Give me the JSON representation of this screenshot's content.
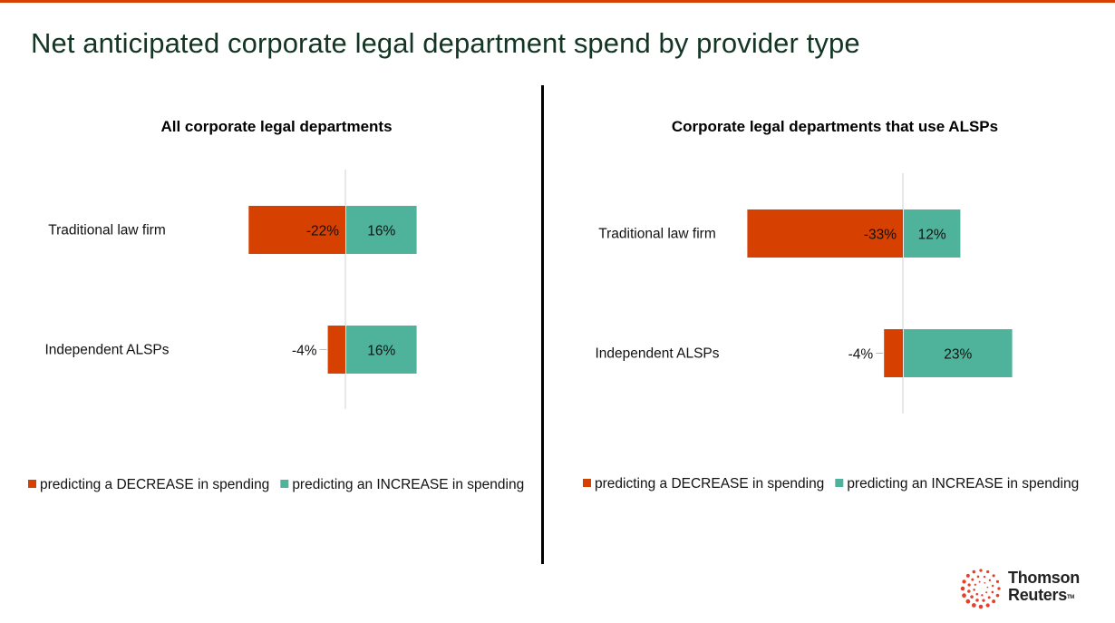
{
  "page": {
    "title": "Net anticipated corporate legal department spend by provider type",
    "accent_color": "#d64000"
  },
  "colors": {
    "decrease": "#d64000",
    "increase": "#4fb39b",
    "axis": "#d0d0d0"
  },
  "chart_data": [
    {
      "type": "bar",
      "orientation": "horizontal",
      "stacked": "diverging",
      "title": "All corporate legal departments",
      "categories": [
        "Traditional law firm",
        "Independent ALSPs"
      ],
      "series": [
        {
          "name": "predicting a DECREASE in spending",
          "values": [
            -22,
            -4
          ],
          "labels": [
            "-22%",
            "-4%"
          ]
        },
        {
          "name": "predicting an INCREASE in spending",
          "values": [
            16,
            16
          ],
          "labels": [
            "16%",
            "16%"
          ]
        }
      ],
      "xlabel": "",
      "ylabel": "",
      "grid": false,
      "legend_position": "bottom"
    },
    {
      "type": "bar",
      "orientation": "horizontal",
      "stacked": "diverging",
      "title": "Corporate legal departments that use ALSPs",
      "categories": [
        "Traditional law firm",
        "Independent ALSPs"
      ],
      "series": [
        {
          "name": "predicting a DECREASE in spending",
          "values": [
            -33,
            -4
          ],
          "labels": [
            "-33%",
            "-4%"
          ]
        },
        {
          "name": "predicting an INCREASE in spending",
          "values": [
            12,
            23
          ],
          "labels": [
            "12%",
            "23%"
          ]
        }
      ],
      "xlabel": "",
      "ylabel": "",
      "grid": false,
      "legend_position": "bottom"
    }
  ],
  "logo": {
    "line1": "Thomson",
    "line2": "Reuters",
    "tm": "TM"
  }
}
